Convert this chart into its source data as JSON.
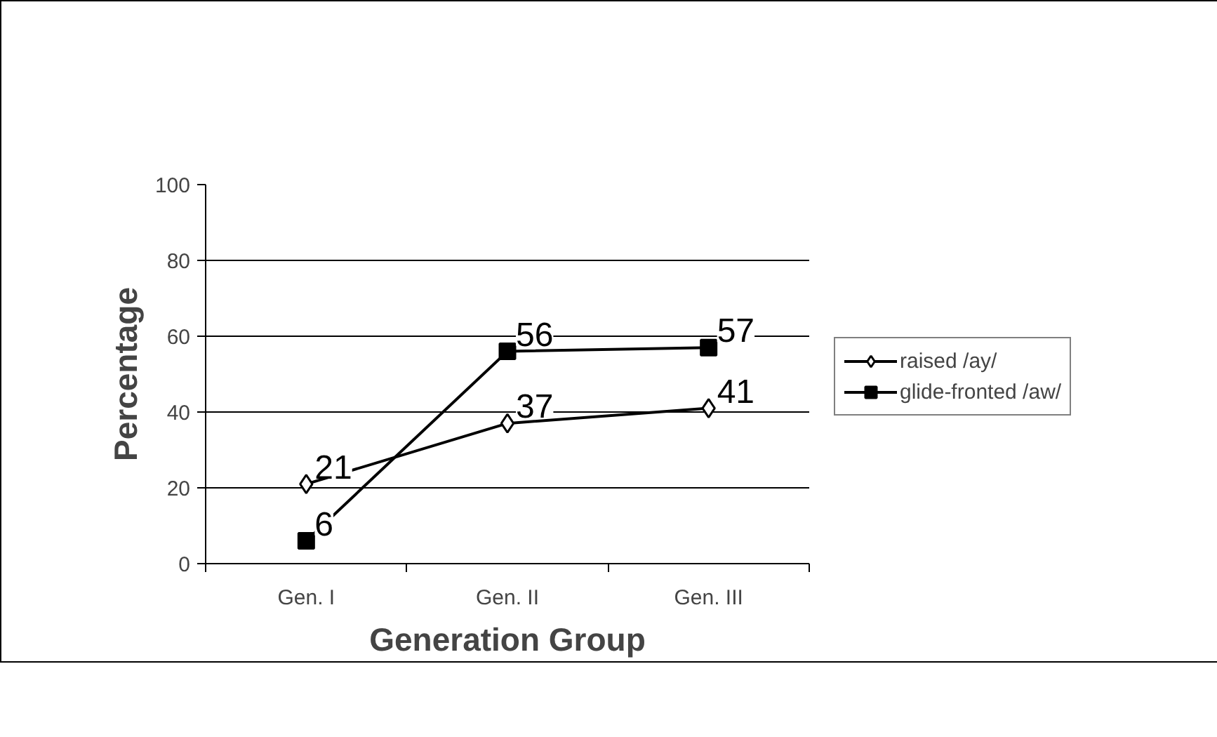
{
  "chart_data": {
    "type": "line",
    "xlabel": "Generation Group",
    "ylabel": "Percentage",
    "categories": [
      "Gen. I",
      "Gen. II",
      "Gen. III"
    ],
    "series": [
      {
        "name": "raised /ay/",
        "color": "#000000",
        "marker": "diamond",
        "values": [
          21,
          37,
          41
        ]
      },
      {
        "name": "glide-fronted /aw/",
        "color": "#000000",
        "marker": "square",
        "values": [
          6,
          56,
          57
        ]
      }
    ],
    "ylim": [
      0,
      100
    ],
    "yticks": [
      0,
      20,
      40,
      60,
      80,
      100
    ],
    "grid": "y",
    "legend": "right",
    "data_labels": true
  }
}
